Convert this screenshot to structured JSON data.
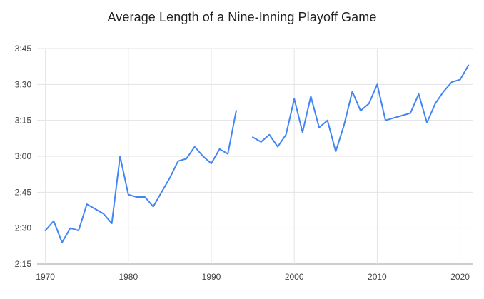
{
  "chart_data": {
    "type": "line",
    "title": "Average Length of a Nine-Inning Playoff Game",
    "xlabel": "",
    "ylabel": "",
    "legend": "none",
    "grid": true,
    "x_ticks": [
      1970,
      1980,
      1990,
      2000,
      2010,
      2020
    ],
    "y_tick_labels": [
      "2:15",
      "2:30",
      "2:45",
      "3:00",
      "3:15",
      "3:30",
      "3:45"
    ],
    "y_tick_minutes": [
      135,
      150,
      165,
      180,
      195,
      210,
      225
    ],
    "x_range": [
      1969,
      2021.5
    ],
    "y_range_minutes": [
      135,
      225
    ],
    "colors": {
      "line": "#4285f4",
      "grid": "#e3e3e3",
      "baseline": "#9e9e9e",
      "tick_label": "#444444",
      "title": "#212121",
      "background": "#ffffff"
    },
    "series": [
      {
        "years": [
          1970,
          1971,
          1972,
          1973,
          1974,
          1975,
          1976,
          1977,
          1978,
          1979,
          1980,
          1981,
          1982,
          1983,
          1984,
          1985,
          1986,
          1987,
          1988,
          1989,
          1990,
          1991,
          1992,
          1993,
          1994,
          1995,
          1996,
          1997,
          1998,
          1999,
          2000,
          2001,
          2002,
          2003,
          2004,
          2005,
          2006,
          2007,
          2008,
          2009,
          2010,
          2011,
          2012,
          2013,
          2014,
          2015,
          2016,
          2017,
          2018,
          2019,
          2020,
          2021
        ],
        "minutes": [
          149,
          153,
          144,
          150,
          149,
          160,
          158,
          156,
          152,
          180,
          164,
          163,
          163,
          159,
          165,
          171,
          178,
          179,
          184,
          180,
          177,
          183,
          181,
          199,
          null,
          188,
          186,
          189,
          184,
          189,
          204,
          190,
          205,
          192,
          195,
          182,
          193,
          207,
          199,
          202,
          210,
          195,
          196,
          197,
          198,
          206,
          194,
          202,
          207,
          211,
          212,
          218
        ],
        "time_labels": [
          "2:29",
          "2:33",
          "2:24",
          "2:30",
          "2:29",
          "2:40",
          "2:38",
          "2:36",
          "2:32",
          "3:00",
          "2:44",
          "2:43",
          "2:43",
          "2:39",
          "2:45",
          "2:51",
          "2:58",
          "2:59",
          "3:04",
          "3:00",
          "2:57",
          "3:03",
          "3:01",
          "3:19",
          null,
          "3:08",
          "3:06",
          "3:09",
          "3:04",
          "3:09",
          "3:24",
          "3:10",
          "3:25",
          "3:12",
          "3:15",
          "3:02",
          "3:13",
          "3:27",
          "3:19",
          "3:22",
          "3:30",
          "3:15",
          "3:16",
          "3:17",
          "3:18",
          "3:26",
          "3:14",
          "3:22",
          "3:27",
          "3:31",
          "3:32",
          "3:38"
        ]
      }
    ]
  }
}
